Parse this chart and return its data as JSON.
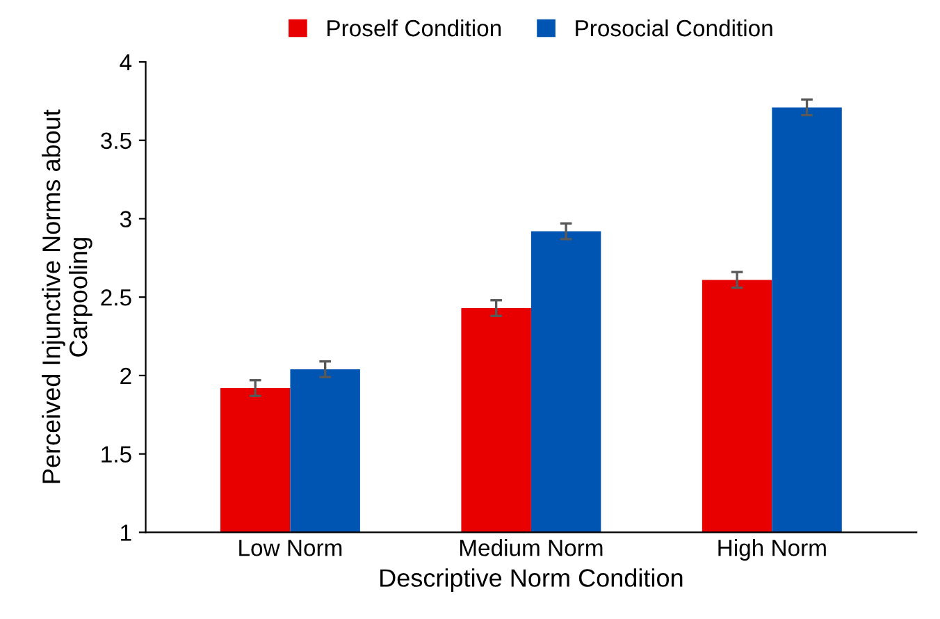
{
  "chart_data": {
    "type": "bar",
    "xlabel": "Descriptive Norm Condition",
    "ylabel": "Perceived Injunctive Norms about\nCarpooling",
    "categories": [
      "Low Norm",
      "Medium Norm",
      "High Norm"
    ],
    "series": [
      {
        "name": "Proself Condition",
        "color": "#e80000",
        "values": [
          1.92,
          2.43,
          2.61
        ],
        "errors": [
          0.05,
          0.05,
          0.05
        ]
      },
      {
        "name": "Prosocial Condition",
        "color": "#0055b3",
        "values": [
          2.04,
          2.92,
          3.71
        ],
        "errors": [
          0.05,
          0.05,
          0.05
        ]
      }
    ],
    "ylim": [
      1,
      4
    ],
    "yticks": [
      1,
      1.5,
      2,
      2.5,
      3,
      3.5,
      4
    ],
    "grid": false,
    "legend": "top"
  }
}
